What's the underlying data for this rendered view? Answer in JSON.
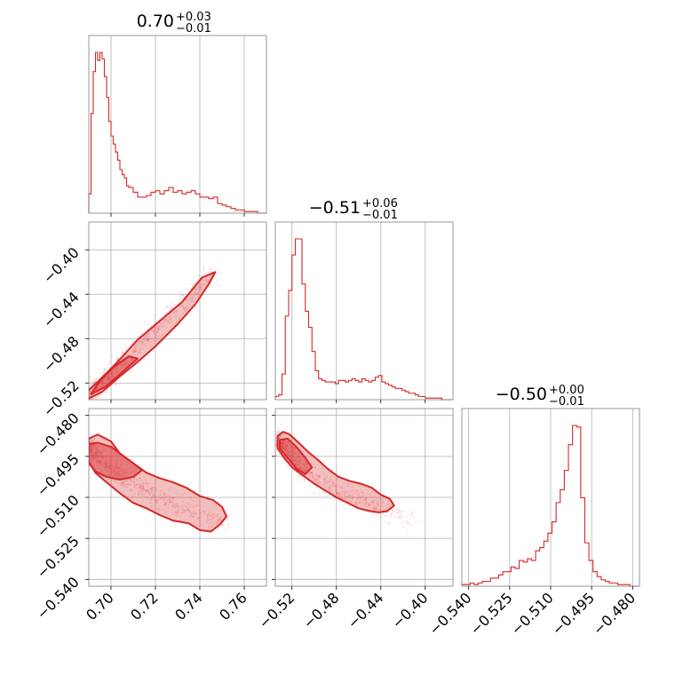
{
  "color": "#d62728",
  "chart_data": {
    "type": "corner",
    "grid": true,
    "params": [
      {
        "title_value": "0.70",
        "title_plus": "+0.03",
        "title_minus": "−0.01",
        "range": [
          0.69,
          0.77
        ],
        "ticks": [
          0.7,
          0.72,
          0.74,
          0.76
        ],
        "tick_labels": [
          "0.70",
          "0.72",
          "0.74",
          "0.76"
        ]
      },
      {
        "title_value": "−0.51",
        "title_plus": "+0.06",
        "title_minus": "−0.01",
        "range": [
          -0.535,
          -0.375
        ],
        "ticks": [
          -0.52,
          -0.48,
          -0.44,
          -0.4
        ],
        "tick_labels": [
          "−0.52",
          "−0.48",
          "−0.44",
          "−0.40"
        ]
      },
      {
        "title_value": "−0.50",
        "title_plus": "+0.00",
        "title_minus": "−0.01",
        "range": [
          -0.5425,
          -0.4775
        ],
        "ticks": [
          -0.54,
          -0.525,
          -0.51,
          -0.495,
          -0.48
        ],
        "tick_labels": [
          "−0.540",
          "−0.525",
          "−0.510",
          "−0.495",
          "−0.480"
        ]
      }
    ],
    "histograms": [
      {
        "param": 0,
        "bins": [
          0.69,
          0.691,
          0.692,
          0.693,
          0.694,
          0.695,
          0.696,
          0.697,
          0.698,
          0.699,
          0.7,
          0.701,
          0.702,
          0.703,
          0.704,
          0.705,
          0.706,
          0.707,
          0.708,
          0.709,
          0.71,
          0.712,
          0.714,
          0.716,
          0.718,
          0.72,
          0.722,
          0.724,
          0.726,
          0.728,
          0.73,
          0.732,
          0.734,
          0.736,
          0.738,
          0.74,
          0.742,
          0.744,
          0.746,
          0.748,
          0.75,
          0.752,
          0.754,
          0.756,
          0.758,
          0.76,
          0.762,
          0.764,
          0.766,
          0.768,
          0.77
        ],
        "counts": [
          0.12,
          0.62,
          0.88,
          1.0,
          0.95,
          1.0,
          0.96,
          0.85,
          0.72,
          0.57,
          0.48,
          0.43,
          0.38,
          0.33,
          0.27,
          0.24,
          0.22,
          0.17,
          0.16,
          0.16,
          0.13,
          0.1,
          0.1,
          0.11,
          0.13,
          0.14,
          0.12,
          0.14,
          0.16,
          0.13,
          0.14,
          0.12,
          0.13,
          0.14,
          0.12,
          0.1,
          0.1,
          0.09,
          0.1,
          0.06,
          0.05,
          0.04,
          0.03,
          0.02,
          0.02,
          0.01,
          0.01,
          0.01,
          0.0,
          0.0
        ]
      },
      {
        "param": 1,
        "bins": [
          -0.535,
          -0.532,
          -0.529,
          -0.526,
          -0.523,
          -0.52,
          -0.517,
          -0.514,
          -0.511,
          -0.508,
          -0.505,
          -0.502,
          -0.499,
          -0.496,
          -0.493,
          -0.49,
          -0.487,
          -0.484,
          -0.481,
          -0.478,
          -0.475,
          -0.472,
          -0.469,
          -0.466,
          -0.463,
          -0.46,
          -0.457,
          -0.454,
          -0.451,
          -0.448,
          -0.445,
          -0.442,
          -0.439,
          -0.436,
          -0.433,
          -0.43,
          -0.427,
          -0.424,
          -0.421,
          -0.418,
          -0.415,
          -0.412,
          -0.409,
          -0.406,
          -0.403,
          -0.4,
          -0.397,
          -0.394,
          -0.391,
          -0.388,
          -0.385,
          -0.382,
          -0.379,
          -0.376
        ],
        "counts": [
          0.02,
          0.03,
          0.16,
          0.52,
          0.68,
          0.9,
          1.0,
          1.0,
          0.72,
          0.55,
          0.45,
          0.3,
          0.18,
          0.13,
          0.12,
          0.11,
          0.11,
          0.11,
          0.1,
          0.12,
          0.12,
          0.11,
          0.12,
          0.13,
          0.12,
          0.11,
          0.13,
          0.12,
          0.11,
          0.12,
          0.14,
          0.15,
          0.11,
          0.1,
          0.09,
          0.08,
          0.07,
          0.07,
          0.06,
          0.05,
          0.04,
          0.04,
          0.03,
          0.02,
          0.02,
          0.01,
          0.01,
          0.01,
          0.01,
          0.01,
          0.0,
          0.0,
          0.0
        ]
      },
      {
        "param": 2,
        "bins": [
          -0.5425,
          -0.541,
          -0.5395,
          -0.538,
          -0.5365,
          -0.535,
          -0.5335,
          -0.532,
          -0.5305,
          -0.529,
          -0.5275,
          -0.526,
          -0.5245,
          -0.523,
          -0.5215,
          -0.52,
          -0.5185,
          -0.517,
          -0.5155,
          -0.514,
          -0.5125,
          -0.511,
          -0.5095,
          -0.508,
          -0.5065,
          -0.505,
          -0.5035,
          -0.502,
          -0.5005,
          -0.499,
          -0.4975,
          -0.496,
          -0.4945,
          -0.493,
          -0.4915,
          -0.49,
          -0.4885,
          -0.487,
          -0.4855,
          -0.484,
          -0.4825,
          -0.481,
          -0.4795,
          -0.478
        ],
        "counts": [
          0.01,
          0.01,
          0.02,
          0.01,
          0.02,
          0.03,
          0.03,
          0.05,
          0.05,
          0.07,
          0.09,
          0.09,
          0.12,
          0.11,
          0.16,
          0.15,
          0.17,
          0.16,
          0.22,
          0.24,
          0.28,
          0.33,
          0.4,
          0.52,
          0.6,
          0.72,
          0.88,
          1.0,
          0.99,
          0.55,
          0.27,
          0.16,
          0.09,
          0.06,
          0.04,
          0.03,
          0.02,
          0.02,
          0.01,
          0.01,
          0.01,
          0.0,
          0.0
        ]
      }
    ],
    "joint": [
      {
        "x_param": 0,
        "y_param": 1,
        "ridge_x": [
          0.69,
          0.7,
          0.71,
          0.72,
          0.73,
          0.74,
          0.746
        ],
        "ridge_y": [
          -0.53,
          -0.511,
          -0.491,
          -0.471,
          -0.452,
          -0.433,
          -0.421
        ],
        "contours": [
          {
            "level": "outer",
            "x": [
              0.69,
              0.696,
              0.704,
              0.712,
              0.72,
              0.73,
              0.738,
              0.744,
              0.747,
              0.741,
              0.732,
              0.722,
              0.712,
              0.702,
              0.694,
              0.689,
              0.69
            ],
            "y": [
              -0.534,
              -0.528,
              -0.514,
              -0.501,
              -0.487,
              -0.467,
              -0.449,
              -0.431,
              -0.42,
              -0.425,
              -0.447,
              -0.464,
              -0.481,
              -0.503,
              -0.519,
              -0.528,
              -0.534
            ]
          },
          {
            "level": "inner",
            "x": [
              0.691,
              0.697,
              0.703,
              0.708,
              0.712,
              0.708,
              0.701,
              0.695,
              0.691
            ],
            "y": [
              -0.53,
              -0.524,
              -0.514,
              -0.505,
              -0.498,
              -0.496,
              -0.506,
              -0.518,
              -0.53
            ]
          }
        ]
      },
      {
        "x_param": 0,
        "y_param": 2,
        "ridge_x": [
          0.69,
          0.7,
          0.71,
          0.72,
          0.73,
          0.74,
          0.752
        ],
        "ridge_y": [
          -0.4915,
          -0.499,
          -0.505,
          -0.5095,
          -0.5135,
          -0.5165,
          -0.52
        ],
        "contours": [
          {
            "level": "outer",
            "x": [
              0.69,
              0.694,
              0.7,
              0.704,
              0.71,
              0.716,
              0.722,
              0.728,
              0.734,
              0.74,
              0.746,
              0.75,
              0.752,
              0.749,
              0.745,
              0.74,
              0.735,
              0.728,
              0.722,
              0.716,
              0.71,
              0.704,
              0.698,
              0.693,
              0.69,
              0.69
            ],
            "y": [
              -0.4885,
              -0.487,
              -0.4895,
              -0.494,
              -0.4975,
              -0.501,
              -0.503,
              -0.5045,
              -0.5065,
              -0.5095,
              -0.511,
              -0.5135,
              -0.517,
              -0.52,
              -0.5225,
              -0.522,
              -0.5195,
              -0.5185,
              -0.5165,
              -0.514,
              -0.512,
              -0.5085,
              -0.5045,
              -0.501,
              -0.497,
              -0.4885
            ]
          },
          {
            "level": "inner",
            "x": [
              0.69,
              0.694,
              0.7,
              0.705,
              0.71,
              0.714,
              0.71,
              0.704,
              0.698,
              0.693,
              0.69,
              0.69
            ],
            "y": [
              -0.4905,
              -0.49,
              -0.4915,
              -0.4945,
              -0.4975,
              -0.5,
              -0.5025,
              -0.5035,
              -0.5025,
              -0.5005,
              -0.4975,
              -0.4905
            ]
          }
        ]
      },
      {
        "x_param": 1,
        "y_param": 2,
        "ridge_x": [
          -0.532,
          -0.52,
          -0.5,
          -0.48,
          -0.46,
          -0.44,
          -0.41
        ],
        "ridge_y": [
          -0.489,
          -0.496,
          -0.503,
          -0.5075,
          -0.511,
          -0.514,
          -0.518
        ],
        "contours": [
          {
            "level": "outer",
            "x": [
              -0.533,
              -0.528,
              -0.522,
              -0.514,
              -0.505,
              -0.496,
              -0.488,
              -0.478,
              -0.468,
              -0.458,
              -0.448,
              -0.44,
              -0.432,
              -0.428,
              -0.434,
              -0.442,
              -0.45,
              -0.46,
              -0.47,
              -0.48,
              -0.49,
              -0.5,
              -0.51,
              -0.52,
              -0.528,
              -0.533,
              -0.533
            ],
            "y": [
              -0.4875,
              -0.486,
              -0.487,
              -0.49,
              -0.4935,
              -0.4965,
              -0.4995,
              -0.5025,
              -0.504,
              -0.505,
              -0.5065,
              -0.509,
              -0.5105,
              -0.513,
              -0.515,
              -0.5155,
              -0.515,
              -0.514,
              -0.512,
              -0.51,
              -0.5075,
              -0.505,
              -0.502,
              -0.499,
              -0.495,
              -0.492,
              -0.4875
            ]
          },
          {
            "level": "inner",
            "x": [
              -0.531,
              -0.524,
              -0.516,
              -0.508,
              -0.502,
              -0.508,
              -0.516,
              -0.524,
              -0.531,
              -0.531
            ],
            "y": [
              -0.489,
              -0.4885,
              -0.4915,
              -0.4955,
              -0.499,
              -0.5015,
              -0.4995,
              -0.4955,
              -0.492,
              -0.489
            ]
          }
        ]
      }
    ]
  }
}
